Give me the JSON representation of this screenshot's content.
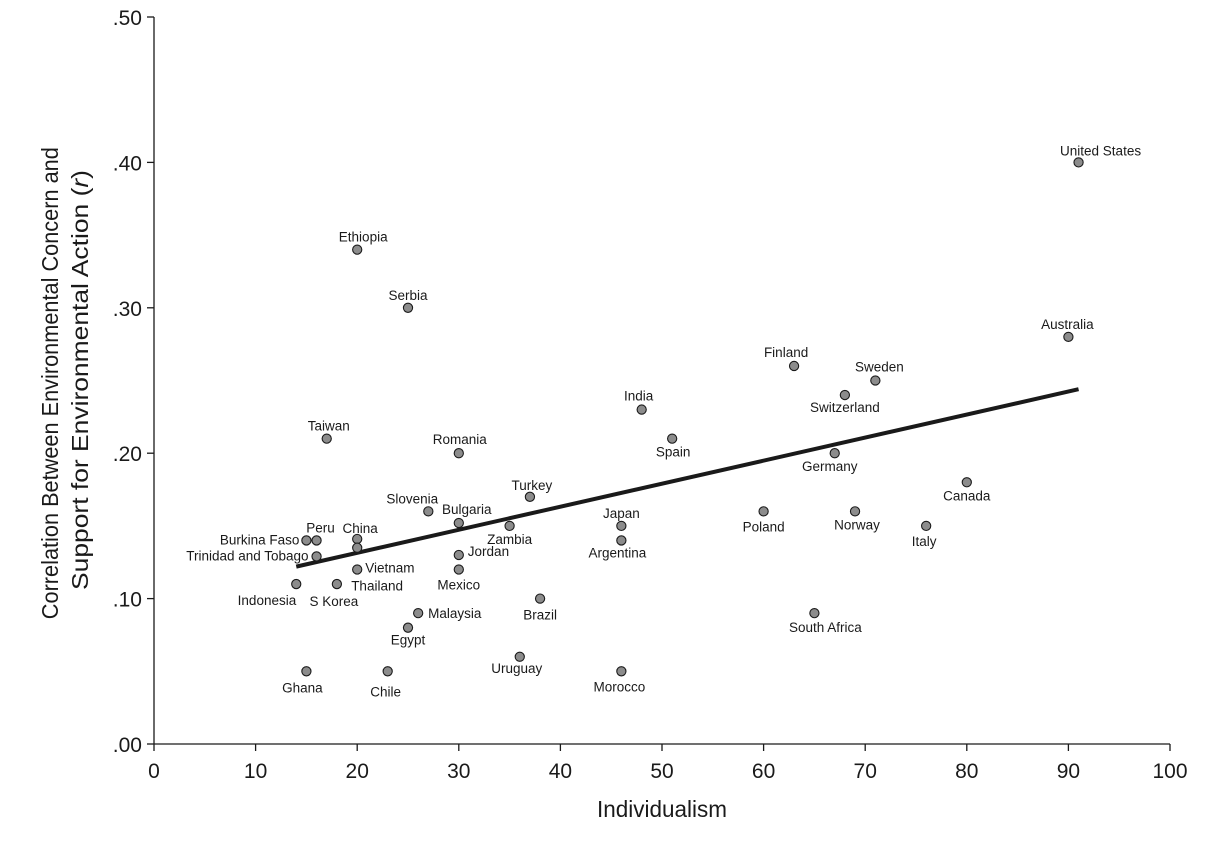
{
  "chart_data": {
    "type": "scatter",
    "xlabel": "Individualism",
    "ylabel_lines": [
      "Correlation Between Environmental Concern and",
      "Support for Environmental Action ("
    ],
    "ylabel_italic": "r",
    "ylabel_close": ")",
    "xlim": [
      0,
      100
    ],
    "ylim": [
      0,
      0.5
    ],
    "x_ticks": [
      {
        "value": 0,
        "label": "0"
      },
      {
        "value": 10,
        "label": "10"
      },
      {
        "value": 20,
        "label": "20"
      },
      {
        "value": 30,
        "label": "30"
      },
      {
        "value": 40,
        "label": "40"
      },
      {
        "value": 50,
        "label": "50"
      },
      {
        "value": 60,
        "label": "60"
      },
      {
        "value": 70,
        "label": "70"
      },
      {
        "value": 80,
        "label": "80"
      },
      {
        "value": 90,
        "label": "90"
      },
      {
        "value": 100,
        "label": "100"
      }
    ],
    "y_ticks": [
      {
        "value": 0,
        "label": ".00"
      },
      {
        "value": 0.1,
        "label": ".10"
      },
      {
        "value": 0.2,
        "label": ".20"
      },
      {
        "value": 0.3,
        "label": ".30"
      },
      {
        "value": 0.4,
        "label": ".40"
      },
      {
        "value": 0.5,
        "label": ".50"
      }
    ],
    "grid": false,
    "trendline": {
      "x": [
        14,
        91
      ],
      "y": [
        0.122,
        0.244
      ]
    },
    "points": [
      {
        "label": "United States",
        "x": 91,
        "y": 0.4
      },
      {
        "label": "Ethiopia",
        "x": 20,
        "y": 0.34
      },
      {
        "label": "Serbia",
        "x": 25,
        "y": 0.3
      },
      {
        "label": "Australia",
        "x": 90,
        "y": 0.28
      },
      {
        "label": "Finland",
        "x": 63,
        "y": 0.26
      },
      {
        "label": "Sweden",
        "x": 71,
        "y": 0.25
      },
      {
        "label": "Switzerland",
        "x": 68,
        "y": 0.24
      },
      {
        "label": "India",
        "x": 48,
        "y": 0.23
      },
      {
        "label": "Taiwan",
        "x": 17,
        "y": 0.21
      },
      {
        "label": "Spain",
        "x": 51,
        "y": 0.21
      },
      {
        "label": "Romania",
        "x": 30,
        "y": 0.2
      },
      {
        "label": "Germany",
        "x": 67,
        "y": 0.2
      },
      {
        "label": "Canada",
        "x": 80,
        "y": 0.18
      },
      {
        "label": "Turkey",
        "x": 37,
        "y": 0.17
      },
      {
        "label": "Slovenia",
        "x": 27,
        "y": 0.16
      },
      {
        "label": "Poland",
        "x": 60,
        "y": 0.16
      },
      {
        "label": "Norway",
        "x": 69,
        "y": 0.16
      },
      {
        "label": "Bulgaria",
        "x": 30,
        "y": 0.152
      },
      {
        "label": "Zambia",
        "x": 35,
        "y": 0.15
      },
      {
        "label": "Japan",
        "x": 46,
        "y": 0.15
      },
      {
        "label": "Italy",
        "x": 76,
        "y": 0.15
      },
      {
        "label": "Burkina Faso",
        "x": 15,
        "y": 0.14
      },
      {
        "label": "Peru",
        "x": 16,
        "y": 0.14
      },
      {
        "label": "China",
        "x": 20,
        "y": 0.141
      },
      {
        "label": "Argentina",
        "x": 46,
        "y": 0.14
      },
      {
        "label": "Vietnam",
        "x": 20,
        "y": 0.135
      },
      {
        "label": "Trinidad and Tobago",
        "x": 16,
        "y": 0.129
      },
      {
        "label": "Jordan",
        "x": 30,
        "y": 0.13
      },
      {
        "label": "Thailand",
        "x": 20,
        "y": 0.12
      },
      {
        "label": "Mexico",
        "x": 30,
        "y": 0.12
      },
      {
        "label": "Indonesia",
        "x": 14,
        "y": 0.11
      },
      {
        "label": "S Korea",
        "x": 18,
        "y": 0.11
      },
      {
        "label": "Brazil",
        "x": 38,
        "y": 0.1
      },
      {
        "label": "Malaysia",
        "x": 26,
        "y": 0.09
      },
      {
        "label": "South Africa",
        "x": 65,
        "y": 0.09
      },
      {
        "label": "Egypt",
        "x": 25,
        "y": 0.08
      },
      {
        "label": "Uruguay",
        "x": 36,
        "y": 0.06
      },
      {
        "label": "Ghana",
        "x": 15,
        "y": 0.05
      },
      {
        "label": "Chile",
        "x": 23,
        "y": 0.05
      },
      {
        "label": "Morocco",
        "x": 46,
        "y": 0.05
      }
    ]
  }
}
